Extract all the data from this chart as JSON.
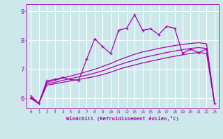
{
  "bg_color": "#cce8eb",
  "line_color": "#aa00aa",
  "grid_color": "#ffffff",
  "xlabel": "Windchill (Refroidissement éolien,°C)",
  "xlabel_color": "#aa00aa",
  "tick_color": "#aa00aa",
  "xlim": [
    -0.5,
    23.5
  ],
  "ylim": [
    5.65,
    9.25
  ],
  "yticks": [
    6,
    7,
    8,
    9
  ],
  "xticks": [
    0,
    1,
    2,
    3,
    4,
    5,
    6,
    7,
    8,
    9,
    10,
    11,
    12,
    13,
    14,
    15,
    16,
    17,
    18,
    19,
    20,
    21,
    22,
    23
  ],
  "smooth1": {
    "x": [
      0,
      1,
      2,
      3,
      4,
      5,
      6,
      7,
      8,
      9,
      10,
      11,
      12,
      13,
      14,
      15,
      16,
      17,
      18,
      19,
      20,
      21,
      22,
      23
    ],
    "y": [
      6.0,
      5.82,
      6.45,
      6.5,
      6.55,
      6.6,
      6.65,
      6.7,
      6.75,
      6.82,
      6.9,
      7.0,
      7.08,
      7.15,
      7.22,
      7.28,
      7.34,
      7.4,
      7.45,
      7.5,
      7.55,
      7.58,
      7.55,
      5.82
    ]
  },
  "smooth2": {
    "x": [
      0,
      1,
      2,
      3,
      4,
      5,
      6,
      7,
      8,
      9,
      10,
      11,
      12,
      13,
      14,
      15,
      16,
      17,
      18,
      19,
      20,
      21,
      22,
      23
    ],
    "y": [
      6.05,
      5.82,
      6.5,
      6.55,
      6.62,
      6.68,
      6.74,
      6.8,
      6.87,
      6.95,
      7.05,
      7.15,
      7.24,
      7.32,
      7.4,
      7.46,
      7.52,
      7.58,
      7.63,
      7.68,
      7.72,
      7.75,
      7.72,
      5.82
    ]
  },
  "smooth3": {
    "x": [
      0,
      1,
      2,
      3,
      4,
      5,
      6,
      7,
      8,
      9,
      10,
      11,
      12,
      13,
      14,
      15,
      16,
      17,
      18,
      19,
      20,
      21,
      22,
      23
    ],
    "y": [
      6.1,
      5.82,
      6.55,
      6.62,
      6.7,
      6.77,
      6.84,
      6.92,
      7.0,
      7.1,
      7.2,
      7.32,
      7.42,
      7.52,
      7.6,
      7.66,
      7.72,
      7.77,
      7.82,
      7.86,
      7.89,
      7.92,
      7.88,
      5.82
    ]
  },
  "jagged": {
    "x": [
      0,
      1,
      2,
      3,
      4,
      5,
      6,
      7,
      8,
      9,
      10,
      11,
      12,
      13,
      14,
      15,
      16,
      17,
      18,
      19,
      20,
      21,
      22,
      23
    ],
    "y": [
      6.0,
      5.82,
      6.6,
      6.65,
      6.72,
      6.65,
      6.62,
      7.35,
      8.05,
      7.78,
      7.55,
      8.35,
      8.42,
      8.88,
      8.35,
      8.4,
      8.2,
      8.48,
      8.42,
      7.55,
      7.7,
      7.58,
      7.7,
      5.82
    ]
  }
}
